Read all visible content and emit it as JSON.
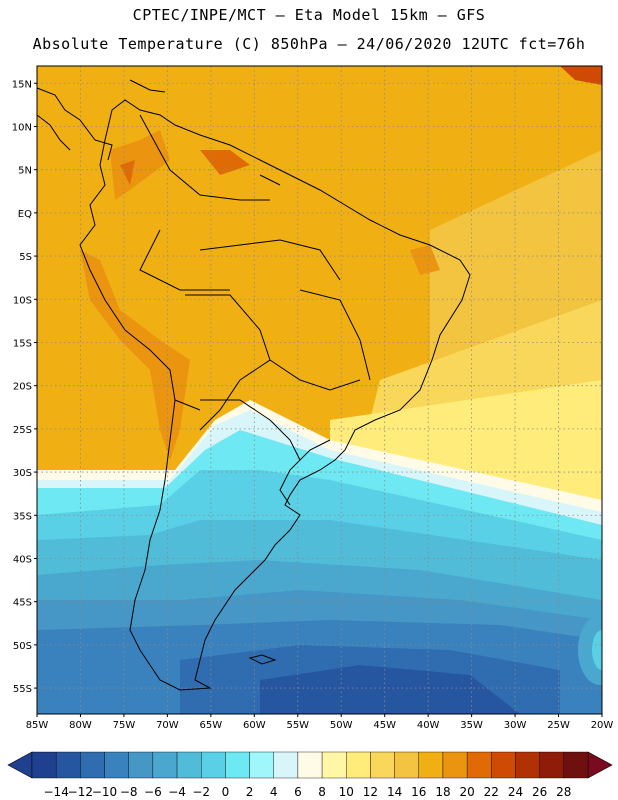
{
  "header": {
    "line1": "CPTEC/INPE/MCT –  Eta Model 15km – GFS",
    "line2": "Absolute Temperature (C) 850hPa – 24/06/2020 12UTC fct=76h"
  },
  "map": {
    "lat_labels": [
      "15N",
      "10N",
      "5N",
      "EQ",
      "5S",
      "10S",
      "15S",
      "20S",
      "25S",
      "30S",
      "35S",
      "40S",
      "45S",
      "50S",
      "55S"
    ],
    "lat_values": [
      15,
      10,
      5,
      0,
      -5,
      -10,
      -15,
      -20,
      -25,
      -30,
      -35,
      -40,
      -45,
      -50,
      -55
    ],
    "lon_labels": [
      "85W",
      "80W",
      "75W",
      "70W",
      "65W",
      "60W",
      "55W",
      "50W",
      "45W",
      "40W",
      "35W",
      "30W",
      "25W",
      "20W"
    ],
    "lon_values": [
      -85,
      -80,
      -75,
      -70,
      -65,
      -60,
      -55,
      -50,
      -45,
      -40,
      -35,
      -30,
      -25,
      -20
    ],
    "extent": {
      "lon_min": -85,
      "lon_max": -20,
      "lat_min": -58,
      "lat_max": 17
    }
  },
  "colorbar": {
    "labels": [
      "-14",
      "-12",
      "-10",
      "-8",
      "-6",
      "-4",
      "-2",
      "0",
      "2",
      "4",
      "6",
      "8",
      "10",
      "12",
      "14",
      "16",
      "18",
      "20",
      "22",
      "24",
      "26",
      "28"
    ],
    "colors": [
      "#1f3f8f",
      "#2756a0",
      "#2f6db0",
      "#3a82bd",
      "#4696c6",
      "#4aa8cf",
      "#50bcd8",
      "#5ad0e6",
      "#6ee8f2",
      "#9ff7fb",
      "#d8f6fa",
      "#fffbe6",
      "#fff7a6",
      "#ffec7a",
      "#f9d75a",
      "#f3c440",
      "#f0b014",
      "#ea9410",
      "#e06a06",
      "#cf4a05",
      "#b03204",
      "#8e1c08",
      "#6e1010"
    ]
  }
}
